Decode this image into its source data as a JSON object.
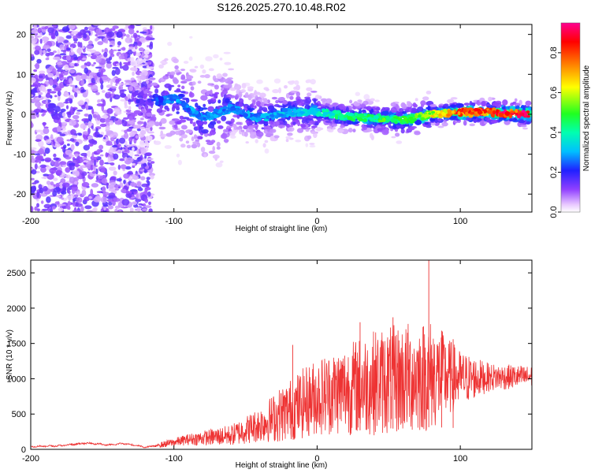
{
  "title": "S126.2025.270.10.48.R02",
  "chart_data": [
    {
      "type": "heatmap",
      "xlabel": "Height of straight line (km)",
      "ylabel": "Frequency (Hz)",
      "xlim": [
        -200,
        150
      ],
      "ylim": [
        -24.5,
        22.5
      ],
      "xticks": [
        -200,
        -100,
        0,
        100
      ],
      "yticks": [
        -20,
        -10,
        0,
        10,
        20
      ],
      "colorbar": {
        "label": "Normalized spectral amplitude",
        "range": [
          0,
          0.95
        ],
        "ticks": [
          0.0,
          0.2,
          0.4,
          0.6,
          0.8
        ]
      },
      "ridge": {
        "description_points_x": [
          -115,
          -100,
          -80,
          -60,
          -40,
          -20,
          0,
          20,
          40,
          60,
          80,
          100,
          120,
          150
        ],
        "description_points_y": [
          3.0,
          4.0,
          -1.0,
          1.5,
          -1.0,
          0.5,
          0.5,
          -0.5,
          -1.0,
          -1.5,
          0.0,
          0.5,
          0.5,
          0.0
        ]
      },
      "amplitude_by_x": {
        "x": [
          -200,
          -120,
          -100,
          -60,
          -20,
          0,
          20,
          60,
          90,
          100,
          150
        ],
        "peak": [
          0.18,
          0.2,
          0.3,
          0.3,
          0.35,
          0.4,
          0.45,
          0.55,
          0.7,
          0.9,
          0.95
        ]
      }
    },
    {
      "type": "line",
      "series_name": "SNR",
      "xlabel": "Height of straight line (km)",
      "ylabel": "SNR (10 * v/v)",
      "xlim": [
        -200,
        150
      ],
      "ylim": [
        0,
        2680
      ],
      "xticks": [
        -200,
        -100,
        0,
        100
      ],
      "yticks": [
        0,
        500,
        1000,
        1500,
        2000,
        2500
      ],
      "color": "#ee3333",
      "envelope": {
        "x": [
          -200,
          -180,
          -160,
          -145,
          -135,
          -120,
          -110,
          -90,
          -60,
          -40,
          -25,
          -10,
          0,
          20,
          40,
          60,
          80,
          100,
          120,
          150
        ],
        "mean": [
          40,
          50,
          90,
          60,
          85,
          30,
          60,
          140,
          200,
          350,
          500,
          650,
          750,
          850,
          950,
          1000,
          1050,
          1000,
          1020,
          1030
        ],
        "spread": [
          20,
          25,
          30,
          25,
          25,
          20,
          40,
          80,
          150,
          250,
          400,
          500,
          550,
          650,
          750,
          800,
          800,
          400,
          200,
          150
        ]
      },
      "peaks": [
        {
          "x": -17,
          "y": 1480
        },
        {
          "x": 30,
          "y": 1800
        },
        {
          "x": 53,
          "y": 1870
        },
        {
          "x": 78,
          "y": 2680
        },
        {
          "x": 87,
          "y": 1680
        },
        {
          "x": 95,
          "y": 1560
        }
      ]
    }
  ]
}
